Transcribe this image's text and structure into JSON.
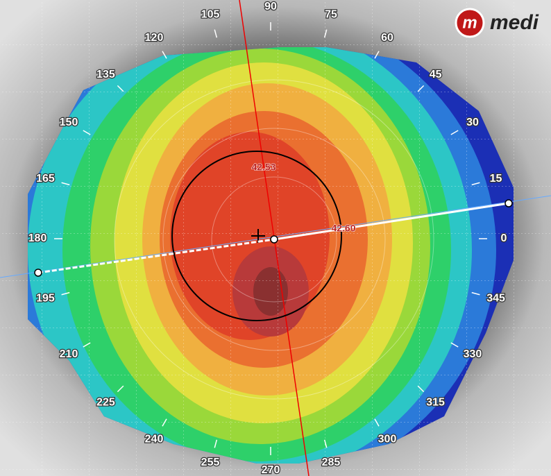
{
  "logo": {
    "mark": "m",
    "text": "medi"
  },
  "angle_labels": [
    0,
    15,
    30,
    45,
    60,
    75,
    90,
    105,
    120,
    135,
    150,
    165,
    180,
    195,
    210,
    225,
    240,
    255,
    270,
    285,
    300,
    315,
    330,
    345
  ],
  "readings": [
    "42.53",
    "42.60"
  ]
}
